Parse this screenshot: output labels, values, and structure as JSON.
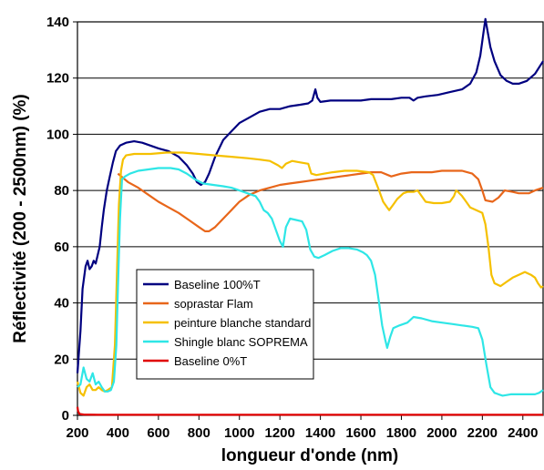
{
  "chart_data": {
    "type": "line",
    "title": "",
    "xlabel": "longueur d'onde (nm)",
    "ylabel": "Réflectivité (200 - 2500nm) (%)",
    "xlim": [
      200,
      2500
    ],
    "ylim": [
      0,
      140
    ],
    "xticks": [
      200,
      400,
      600,
      800,
      1000,
      1200,
      1400,
      1600,
      1800,
      2000,
      2200,
      2400
    ],
    "yticks": [
      0,
      20,
      40,
      60,
      80,
      100,
      120,
      140
    ],
    "grid": "horizontal",
    "legend_position": "lower-left",
    "series": [
      {
        "name": "Baseline 100%T",
        "color": "#000080",
        "points": [
          [
            200,
            15
          ],
          [
            215,
            30
          ],
          [
            225,
            45
          ],
          [
            240,
            53
          ],
          [
            250,
            55
          ],
          [
            260,
            52
          ],
          [
            270,
            53
          ],
          [
            280,
            55
          ],
          [
            290,
            54
          ],
          [
            300,
            57
          ],
          [
            310,
            60
          ],
          [
            320,
            67
          ],
          [
            330,
            73
          ],
          [
            345,
            80
          ],
          [
            360,
            85
          ],
          [
            375,
            90
          ],
          [
            390,
            94
          ],
          [
            410,
            96
          ],
          [
            440,
            97
          ],
          [
            480,
            97.5
          ],
          [
            520,
            97
          ],
          [
            560,
            96
          ],
          [
            600,
            95
          ],
          [
            650,
            94
          ],
          [
            700,
            92
          ],
          [
            740,
            89
          ],
          [
            770,
            86
          ],
          [
            790,
            83
          ],
          [
            810,
            82
          ],
          [
            830,
            83
          ],
          [
            850,
            86
          ],
          [
            880,
            92
          ],
          [
            920,
            98
          ],
          [
            960,
            101
          ],
          [
            1000,
            104
          ],
          [
            1050,
            106
          ],
          [
            1100,
            108
          ],
          [
            1150,
            109
          ],
          [
            1200,
            109
          ],
          [
            1250,
            110
          ],
          [
            1300,
            110.5
          ],
          [
            1340,
            111
          ],
          [
            1360,
            112
          ],
          [
            1375,
            116
          ],
          [
            1385,
            113
          ],
          [
            1400,
            111.5
          ],
          [
            1450,
            112
          ],
          [
            1500,
            112
          ],
          [
            1550,
            112
          ],
          [
            1600,
            112
          ],
          [
            1650,
            112.5
          ],
          [
            1700,
            112.5
          ],
          [
            1750,
            112.5
          ],
          [
            1800,
            113
          ],
          [
            1840,
            113
          ],
          [
            1860,
            112
          ],
          [
            1880,
            113
          ],
          [
            1920,
            113.5
          ],
          [
            1980,
            114
          ],
          [
            2040,
            115
          ],
          [
            2100,
            116
          ],
          [
            2140,
            118
          ],
          [
            2170,
            122
          ],
          [
            2190,
            128
          ],
          [
            2205,
            136
          ],
          [
            2215,
            141
          ],
          [
            2225,
            137
          ],
          [
            2240,
            131
          ],
          [
            2260,
            126
          ],
          [
            2290,
            121
          ],
          [
            2320,
            119
          ],
          [
            2350,
            118
          ],
          [
            2380,
            118
          ],
          [
            2420,
            119
          ],
          [
            2460,
            121.5
          ],
          [
            2500,
            126
          ]
        ]
      },
      {
        "name": "soprastar Flam",
        "color": "#E8661A",
        "points": [
          [
            400,
            86
          ],
          [
            450,
            83
          ],
          [
            500,
            81
          ],
          [
            550,
            78.5
          ],
          [
            600,
            76
          ],
          [
            650,
            74
          ],
          [
            700,
            72
          ],
          [
            750,
            69.5
          ],
          [
            800,
            67
          ],
          [
            830,
            65.5
          ],
          [
            850,
            65.5
          ],
          [
            880,
            67
          ],
          [
            920,
            70
          ],
          [
            960,
            73
          ],
          [
            1000,
            76
          ],
          [
            1050,
            78.5
          ],
          [
            1100,
            80
          ],
          [
            1150,
            81
          ],
          [
            1200,
            82
          ],
          [
            1250,
            82.5
          ],
          [
            1300,
            83
          ],
          [
            1350,
            83.5
          ],
          [
            1400,
            84
          ],
          [
            1450,
            84.5
          ],
          [
            1500,
            85
          ],
          [
            1550,
            85.5
          ],
          [
            1600,
            86
          ],
          [
            1650,
            86.5
          ],
          [
            1700,
            86.5
          ],
          [
            1750,
            85
          ],
          [
            1800,
            86
          ],
          [
            1850,
            86.5
          ],
          [
            1900,
            86.5
          ],
          [
            1950,
            86.5
          ],
          [
            2000,
            87
          ],
          [
            2050,
            87
          ],
          [
            2100,
            87
          ],
          [
            2150,
            86
          ],
          [
            2180,
            84
          ],
          [
            2200,
            80
          ],
          [
            2215,
            76.5
          ],
          [
            2250,
            76
          ],
          [
            2280,
            77.5
          ],
          [
            2310,
            80
          ],
          [
            2350,
            79.5
          ],
          [
            2380,
            79
          ],
          [
            2400,
            79
          ],
          [
            2430,
            79
          ],
          [
            2460,
            80
          ],
          [
            2500,
            81
          ]
        ]
      },
      {
        "name": "peinture blanche standard",
        "color": "#F5C000",
        "points": [
          [
            200,
            12
          ],
          [
            215,
            8
          ],
          [
            230,
            7
          ],
          [
            245,
            10
          ],
          [
            260,
            11
          ],
          [
            275,
            9
          ],
          [
            290,
            9
          ],
          [
            305,
            10
          ],
          [
            320,
            9
          ],
          [
            335,
            8.5
          ],
          [
            350,
            9
          ],
          [
            370,
            10
          ],
          [
            385,
            25
          ],
          [
            395,
            50
          ],
          [
            405,
            75
          ],
          [
            415,
            87
          ],
          [
            425,
            91
          ],
          [
            440,
            92.5
          ],
          [
            480,
            93
          ],
          [
            560,
            93
          ],
          [
            640,
            93.5
          ],
          [
            720,
            93.5
          ],
          [
            800,
            93
          ],
          [
            880,
            92.5
          ],
          [
            960,
            92
          ],
          [
            1040,
            91.5
          ],
          [
            1100,
            91
          ],
          [
            1150,
            90.5
          ],
          [
            1190,
            89
          ],
          [
            1210,
            88
          ],
          [
            1230,
            89.5
          ],
          [
            1260,
            90.5
          ],
          [
            1300,
            90
          ],
          [
            1340,
            89.5
          ],
          [
            1355,
            86
          ],
          [
            1380,
            85.5
          ],
          [
            1420,
            86
          ],
          [
            1460,
            86.5
          ],
          [
            1520,
            87
          ],
          [
            1580,
            87
          ],
          [
            1640,
            86.5
          ],
          [
            1660,
            85.5
          ],
          [
            1690,
            80
          ],
          [
            1710,
            76
          ],
          [
            1730,
            74
          ],
          [
            1740,
            73
          ],
          [
            1760,
            75
          ],
          [
            1780,
            77
          ],
          [
            1810,
            79
          ],
          [
            1830,
            79.5
          ],
          [
            1860,
            79.5
          ],
          [
            1880,
            80
          ],
          [
            1900,
            78
          ],
          [
            1920,
            76
          ],
          [
            1960,
            75.5
          ],
          [
            2000,
            75.5
          ],
          [
            2040,
            76
          ],
          [
            2060,
            78
          ],
          [
            2070,
            80
          ],
          [
            2080,
            79.5
          ],
          [
            2100,
            78
          ],
          [
            2120,
            76
          ],
          [
            2140,
            74
          ],
          [
            2170,
            73
          ],
          [
            2200,
            72
          ],
          [
            2215,
            68
          ],
          [
            2230,
            60
          ],
          [
            2245,
            50
          ],
          [
            2260,
            47
          ],
          [
            2290,
            46
          ],
          [
            2320,
            47.5
          ],
          [
            2350,
            49
          ],
          [
            2380,
            50
          ],
          [
            2410,
            51
          ],
          [
            2440,
            50
          ],
          [
            2460,
            49
          ],
          [
            2475,
            47
          ],
          [
            2490,
            45.5
          ],
          [
            2500,
            46
          ]
        ]
      },
      {
        "name": "Shingle blanc SOPREMA",
        "color": "#2EE6E6",
        "points": [
          [
            200,
            10
          ],
          [
            215,
            11
          ],
          [
            230,
            17
          ],
          [
            245,
            13
          ],
          [
            260,
            12
          ],
          [
            275,
            15
          ],
          [
            290,
            11
          ],
          [
            305,
            12
          ],
          [
            320,
            10
          ],
          [
            335,
            8.5
          ],
          [
            350,
            8.5
          ],
          [
            365,
            9
          ],
          [
            380,
            12
          ],
          [
            392,
            25
          ],
          [
            400,
            45
          ],
          [
            410,
            70
          ],
          [
            420,
            84
          ],
          [
            435,
            85
          ],
          [
            460,
            86
          ],
          [
            500,
            87
          ],
          [
            550,
            87.5
          ],
          [
            600,
            88
          ],
          [
            660,
            88
          ],
          [
            700,
            87.5
          ],
          [
            740,
            86
          ],
          [
            780,
            84
          ],
          [
            820,
            82.5
          ],
          [
            870,
            82
          ],
          [
            920,
            81.5
          ],
          [
            960,
            81
          ],
          [
            1000,
            80
          ],
          [
            1040,
            79
          ],
          [
            1080,
            78
          ],
          [
            1100,
            76
          ],
          [
            1120,
            73
          ],
          [
            1140,
            72
          ],
          [
            1160,
            70
          ],
          [
            1180,
            66
          ],
          [
            1200,
            62
          ],
          [
            1215,
            60
          ],
          [
            1230,
            67
          ],
          [
            1250,
            70
          ],
          [
            1280,
            69.5
          ],
          [
            1310,
            69
          ],
          [
            1330,
            66
          ],
          [
            1350,
            59
          ],
          [
            1370,
            56.5
          ],
          [
            1390,
            56
          ],
          [
            1420,
            57
          ],
          [
            1460,
            58.5
          ],
          [
            1500,
            59.5
          ],
          [
            1540,
            59.5
          ],
          [
            1580,
            59
          ],
          [
            1610,
            58
          ],
          [
            1630,
            57
          ],
          [
            1650,
            55
          ],
          [
            1670,
            50
          ],
          [
            1690,
            40
          ],
          [
            1705,
            32
          ],
          [
            1720,
            27
          ],
          [
            1730,
            24
          ],
          [
            1745,
            28
          ],
          [
            1760,
            31
          ],
          [
            1790,
            32
          ],
          [
            1830,
            33
          ],
          [
            1860,
            35
          ],
          [
            1900,
            34.5
          ],
          [
            1950,
            33.5
          ],
          [
            2000,
            33
          ],
          [
            2050,
            32.5
          ],
          [
            2100,
            32
          ],
          [
            2150,
            31.5
          ],
          [
            2180,
            31
          ],
          [
            2200,
            27
          ],
          [
            2220,
            18
          ],
          [
            2240,
            10
          ],
          [
            2260,
            8
          ],
          [
            2280,
            7.5
          ],
          [
            2300,
            7
          ],
          [
            2340,
            7.5
          ],
          [
            2380,
            7.5
          ],
          [
            2420,
            7.5
          ],
          [
            2460,
            7.5
          ],
          [
            2480,
            8
          ],
          [
            2500,
            9
          ]
        ]
      },
      {
        "name": "Baseline 0%T",
        "color": "#E00000",
        "points": [
          [
            200,
            3
          ],
          [
            203,
            1.5
          ],
          [
            210,
            0.5
          ],
          [
            230,
            0.3
          ],
          [
            300,
            0.2
          ],
          [
            500,
            0.2
          ],
          [
            1000,
            0.2
          ],
          [
            1500,
            0.2
          ],
          [
            2000,
            0.2
          ],
          [
            2500,
            0.2
          ]
        ]
      }
    ]
  }
}
